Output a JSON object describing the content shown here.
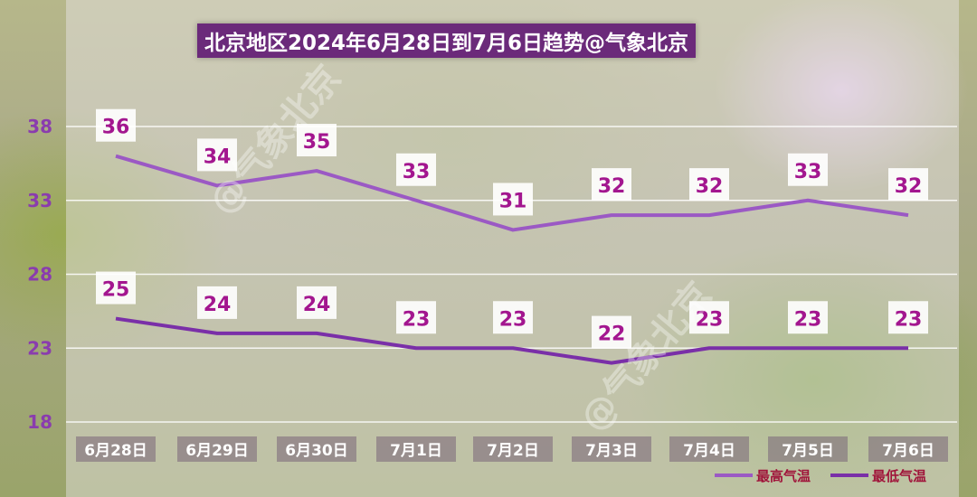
{
  "chart_data": {
    "type": "line",
    "title": "北京地区2024年6月28日到7月6日趋势@气象北京",
    "categories": [
      "6月28日",
      "6月29日",
      "6月30日",
      "7月1日",
      "7月2日",
      "7月3日",
      "7月4日",
      "7月5日",
      "7月6日"
    ],
    "series": [
      {
        "name": "最高气温",
        "values": [
          36,
          34,
          35,
          33,
          31,
          32,
          32,
          33,
          32
        ],
        "color": "#9b59c4"
      },
      {
        "name": "最低气温",
        "values": [
          25,
          24,
          24,
          23,
          23,
          22,
          23,
          23,
          23
        ],
        "color": "#7a2fa8"
      }
    ],
    "yticks": [
      18,
      23,
      28,
      33,
      38
    ],
    "ylim": [
      18,
      38
    ],
    "grid": true,
    "legend": "bottom-right",
    "watermark": "@气象北京"
  }
}
